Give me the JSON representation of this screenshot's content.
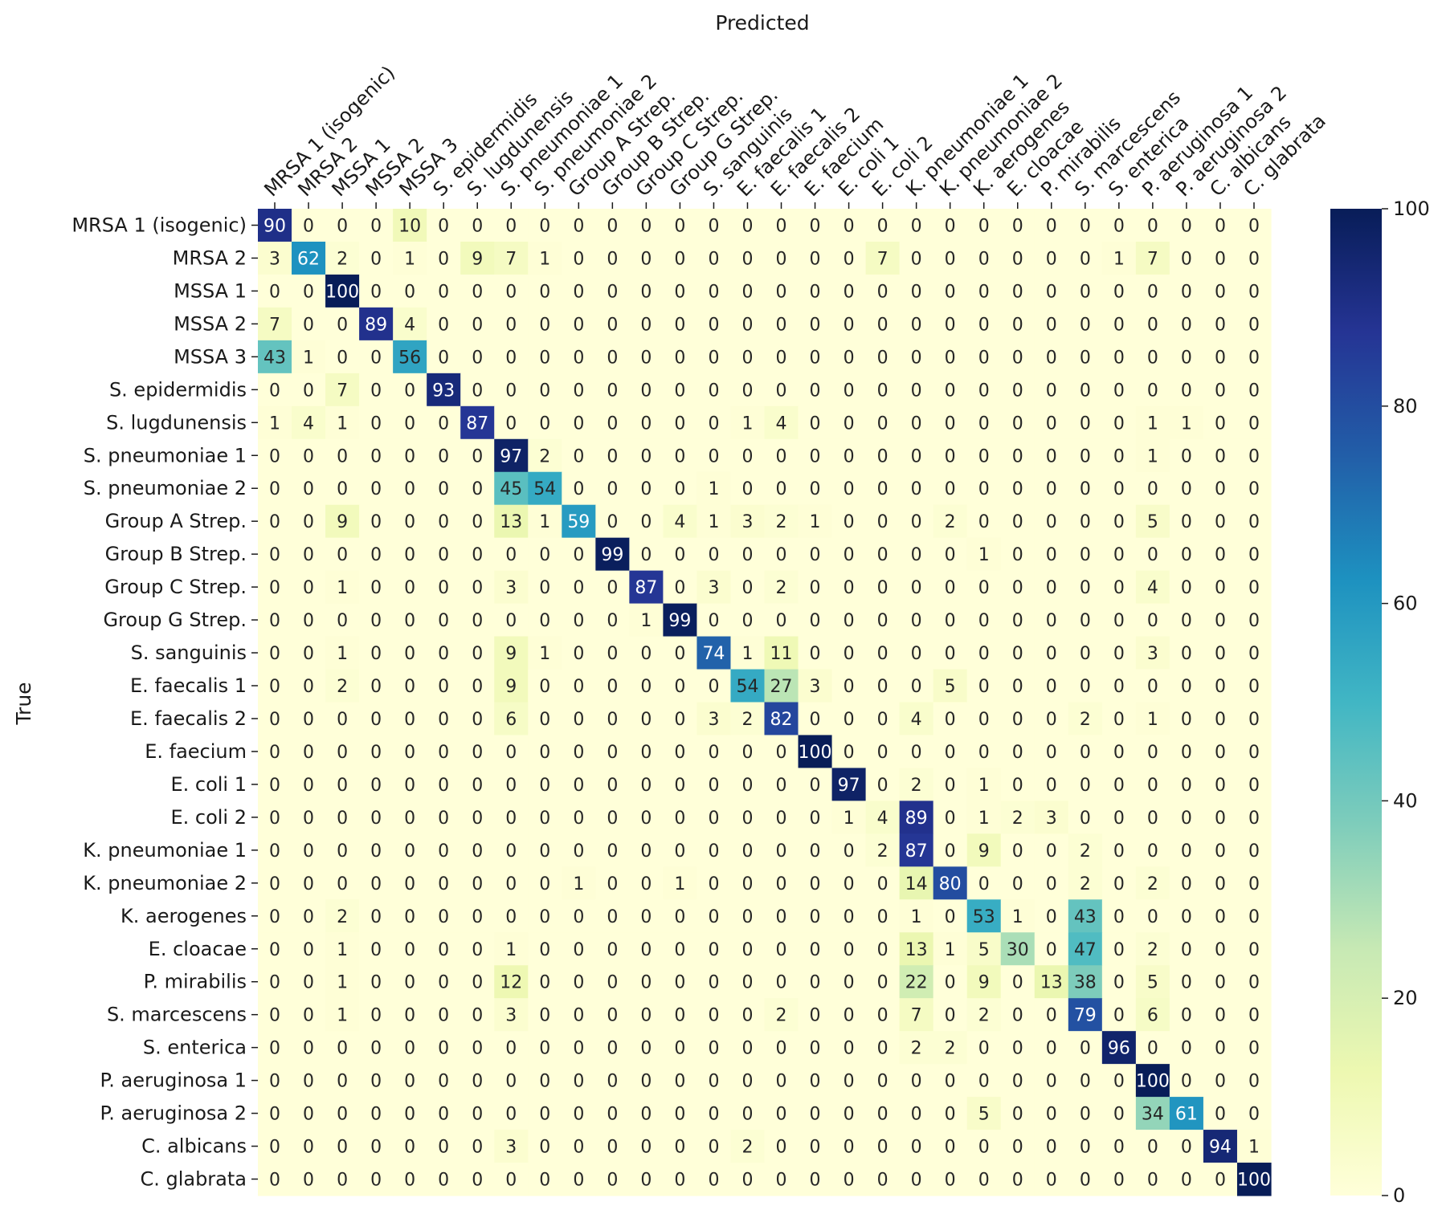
{
  "chart_data": {
    "type": "heatmap",
    "title": "",
    "xlabel": "Predicted",
    "ylabel": "True",
    "x_tick_position": "top",
    "categories": [
      "MRSA 1 (isogenic)",
      "MRSA 2",
      "MSSA 1",
      "MSSA 2",
      "MSSA 3",
      "S. epidermidis",
      "S. lugdunensis",
      "S. pneumoniae 1",
      "S. pneumoniae 2",
      "Group A Strep.",
      "Group B Strep.",
      "Group C Strep.",
      "Group G Strep.",
      "S. sanguinis",
      "E. faecalis 1",
      "E. faecalis 2",
      "E. faecium",
      "E. coli 1",
      "E. coli 2",
      "K. pneumoniae 1",
      "K. pneumoniae 2",
      "K. aerogenes",
      "E. cloacae",
      "P. mirabilis",
      "S. marcescens",
      "S. enterica",
      "P. aeruginosa 1",
      "P. aeruginosa 2",
      "C. albicans",
      "C. glabrata"
    ],
    "values": [
      [
        90,
        0,
        0,
        0,
        10,
        0,
        0,
        0,
        0,
        0,
        0,
        0,
        0,
        0,
        0,
        0,
        0,
        0,
        0,
        0,
        0,
        0,
        0,
        0,
        0,
        0,
        0,
        0,
        0,
        0
      ],
      [
        3,
        62,
        2,
        0,
        1,
        0,
        9,
        7,
        1,
        0,
        0,
        0,
        0,
        0,
        0,
        0,
        0,
        0,
        7,
        0,
        0,
        0,
        0,
        0,
        0,
        1,
        7,
        0,
        0,
        0
      ],
      [
        0,
        0,
        100,
        0,
        0,
        0,
        0,
        0,
        0,
        0,
        0,
        0,
        0,
        0,
        0,
        0,
        0,
        0,
        0,
        0,
        0,
        0,
        0,
        0,
        0,
        0,
        0,
        0,
        0,
        0
      ],
      [
        7,
        0,
        0,
        89,
        4,
        0,
        0,
        0,
        0,
        0,
        0,
        0,
        0,
        0,
        0,
        0,
        0,
        0,
        0,
        0,
        0,
        0,
        0,
        0,
        0,
        0,
        0,
        0,
        0,
        0
      ],
      [
        43,
        1,
        0,
        0,
        56,
        0,
        0,
        0,
        0,
        0,
        0,
        0,
        0,
        0,
        0,
        0,
        0,
        0,
        0,
        0,
        0,
        0,
        0,
        0,
        0,
        0,
        0,
        0,
        0,
        0
      ],
      [
        0,
        0,
        7,
        0,
        0,
        93,
        0,
        0,
        0,
        0,
        0,
        0,
        0,
        0,
        0,
        0,
        0,
        0,
        0,
        0,
        0,
        0,
        0,
        0,
        0,
        0,
        0,
        0,
        0,
        0
      ],
      [
        1,
        4,
        1,
        0,
        0,
        0,
        87,
        0,
        0,
        0,
        0,
        0,
        0,
        0,
        1,
        4,
        0,
        0,
        0,
        0,
        0,
        0,
        0,
        0,
        0,
        0,
        1,
        1,
        0,
        0
      ],
      [
        0,
        0,
        0,
        0,
        0,
        0,
        0,
        97,
        2,
        0,
        0,
        0,
        0,
        0,
        0,
        0,
        0,
        0,
        0,
        0,
        0,
        0,
        0,
        0,
        0,
        0,
        1,
        0,
        0,
        0
      ],
      [
        0,
        0,
        0,
        0,
        0,
        0,
        0,
        45,
        54,
        0,
        0,
        0,
        0,
        1,
        0,
        0,
        0,
        0,
        0,
        0,
        0,
        0,
        0,
        0,
        0,
        0,
        0,
        0,
        0,
        0
      ],
      [
        0,
        0,
        9,
        0,
        0,
        0,
        0,
        13,
        1,
        59,
        0,
        0,
        4,
        1,
        3,
        2,
        1,
        0,
        0,
        0,
        2,
        0,
        0,
        0,
        0,
        0,
        5,
        0,
        0,
        0
      ],
      [
        0,
        0,
        0,
        0,
        0,
        0,
        0,
        0,
        0,
        0,
        99,
        0,
        0,
        0,
        0,
        0,
        0,
        0,
        0,
        0,
        0,
        1,
        0,
        0,
        0,
        0,
        0,
        0,
        0,
        0
      ],
      [
        0,
        0,
        1,
        0,
        0,
        0,
        0,
        3,
        0,
        0,
        0,
        87,
        0,
        3,
        0,
        2,
        0,
        0,
        0,
        0,
        0,
        0,
        0,
        0,
        0,
        0,
        4,
        0,
        0,
        0
      ],
      [
        0,
        0,
        0,
        0,
        0,
        0,
        0,
        0,
        0,
        0,
        0,
        1,
        99,
        0,
        0,
        0,
        0,
        0,
        0,
        0,
        0,
        0,
        0,
        0,
        0,
        0,
        0,
        0,
        0,
        0
      ],
      [
        0,
        0,
        1,
        0,
        0,
        0,
        0,
        9,
        1,
        0,
        0,
        0,
        0,
        74,
        1,
        11,
        0,
        0,
        0,
        0,
        0,
        0,
        0,
        0,
        0,
        0,
        3,
        0,
        0,
        0
      ],
      [
        0,
        0,
        2,
        0,
        0,
        0,
        0,
        9,
        0,
        0,
        0,
        0,
        0,
        0,
        54,
        27,
        3,
        0,
        0,
        0,
        5,
        0,
        0,
        0,
        0,
        0,
        0,
        0,
        0,
        0
      ],
      [
        0,
        0,
        0,
        0,
        0,
        0,
        0,
        6,
        0,
        0,
        0,
        0,
        0,
        3,
        2,
        82,
        0,
        0,
        0,
        4,
        0,
        0,
        0,
        0,
        2,
        0,
        1,
        0,
        0,
        0
      ],
      [
        0,
        0,
        0,
        0,
        0,
        0,
        0,
        0,
        0,
        0,
        0,
        0,
        0,
        0,
        0,
        0,
        100,
        0,
        0,
        0,
        0,
        0,
        0,
        0,
        0,
        0,
        0,
        0,
        0,
        0
      ],
      [
        0,
        0,
        0,
        0,
        0,
        0,
        0,
        0,
        0,
        0,
        0,
        0,
        0,
        0,
        0,
        0,
        0,
        97,
        0,
        2,
        0,
        1,
        0,
        0,
        0,
        0,
        0,
        0,
        0,
        0
      ],
      [
        0,
        0,
        0,
        0,
        0,
        0,
        0,
        0,
        0,
        0,
        0,
        0,
        0,
        0,
        0,
        0,
        0,
        1,
        4,
        89,
        0,
        1,
        2,
        3,
        0,
        0,
        0,
        0,
        0,
        0
      ],
      [
        0,
        0,
        0,
        0,
        0,
        0,
        0,
        0,
        0,
        0,
        0,
        0,
        0,
        0,
        0,
        0,
        0,
        0,
        2,
        87,
        0,
        9,
        0,
        0,
        2,
        0,
        0,
        0,
        0,
        0
      ],
      [
        0,
        0,
        0,
        0,
        0,
        0,
        0,
        0,
        0,
        1,
        0,
        0,
        1,
        0,
        0,
        0,
        0,
        0,
        0,
        14,
        80,
        0,
        0,
        0,
        2,
        0,
        2,
        0,
        0,
        0
      ],
      [
        0,
        0,
        2,
        0,
        0,
        0,
        0,
        0,
        0,
        0,
        0,
        0,
        0,
        0,
        0,
        0,
        0,
        0,
        0,
        1,
        0,
        53,
        1,
        0,
        43,
        0,
        0,
        0,
        0,
        0
      ],
      [
        0,
        0,
        1,
        0,
        0,
        0,
        0,
        1,
        0,
        0,
        0,
        0,
        0,
        0,
        0,
        0,
        0,
        0,
        0,
        13,
        1,
        5,
        30,
        0,
        47,
        0,
        2,
        0,
        0,
        0
      ],
      [
        0,
        0,
        1,
        0,
        0,
        0,
        0,
        12,
        0,
        0,
        0,
        0,
        0,
        0,
        0,
        0,
        0,
        0,
        0,
        22,
        0,
        9,
        0,
        13,
        38,
        0,
        5,
        0,
        0,
        0
      ],
      [
        0,
        0,
        1,
        0,
        0,
        0,
        0,
        3,
        0,
        0,
        0,
        0,
        0,
        0,
        0,
        2,
        0,
        0,
        0,
        7,
        0,
        2,
        0,
        0,
        79,
        0,
        6,
        0,
        0,
        0
      ],
      [
        0,
        0,
        0,
        0,
        0,
        0,
        0,
        0,
        0,
        0,
        0,
        0,
        0,
        0,
        0,
        0,
        0,
        0,
        0,
        2,
        2,
        0,
        0,
        0,
        0,
        96,
        0,
        0,
        0,
        0
      ],
      [
        0,
        0,
        0,
        0,
        0,
        0,
        0,
        0,
        0,
        0,
        0,
        0,
        0,
        0,
        0,
        0,
        0,
        0,
        0,
        0,
        0,
        0,
        0,
        0,
        0,
        0,
        100,
        0,
        0,
        0
      ],
      [
        0,
        0,
        0,
        0,
        0,
        0,
        0,
        0,
        0,
        0,
        0,
        0,
        0,
        0,
        0,
        0,
        0,
        0,
        0,
        0,
        0,
        5,
        0,
        0,
        0,
        0,
        34,
        61,
        0,
        0
      ],
      [
        0,
        0,
        0,
        0,
        0,
        0,
        0,
        3,
        0,
        0,
        0,
        0,
        0,
        0,
        2,
        0,
        0,
        0,
        0,
        0,
        0,
        0,
        0,
        0,
        0,
        0,
        0,
        0,
        94,
        1
      ],
      [
        0,
        0,
        0,
        0,
        0,
        0,
        0,
        0,
        0,
        0,
        0,
        0,
        0,
        0,
        0,
        0,
        0,
        0,
        0,
        0,
        0,
        0,
        0,
        0,
        0,
        0,
        0,
        0,
        0,
        100
      ]
    ],
    "vmin": 0,
    "vmax": 100,
    "colormap": "YlGnBu",
    "colorbar_ticks": [
      0,
      20,
      40,
      60,
      80,
      100
    ],
    "colors": [
      "#ffffd9",
      "#edf8b1",
      "#c7e9b4",
      "#7fcdbb",
      "#41b6c4",
      "#1d91c0",
      "#225ea8",
      "#253494",
      "#081d58"
    ],
    "grid": false
  }
}
